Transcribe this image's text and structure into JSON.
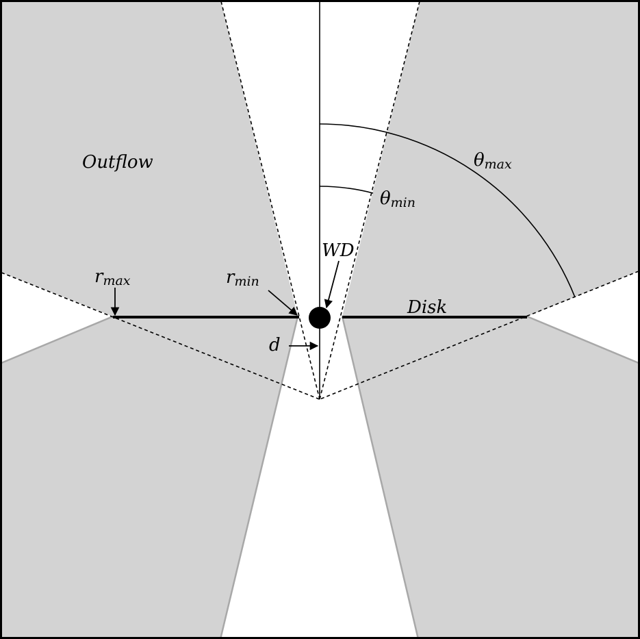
{
  "labels": {
    "outflow": "Outflow",
    "disk": "Disk",
    "wd": "WD",
    "d": "d",
    "r_max": {
      "base": "r",
      "sub": "max"
    },
    "r_min": {
      "base": "r",
      "sub": "min"
    },
    "theta_max": {
      "base": "θ",
      "sub": "max"
    },
    "theta_min": {
      "base": "θ",
      "sub": "min"
    }
  },
  "colors": {
    "region_fill": "#d3d3d3",
    "background": "#ffffff",
    "line": "#000000",
    "edge_gray": "#a8a8a8"
  }
}
